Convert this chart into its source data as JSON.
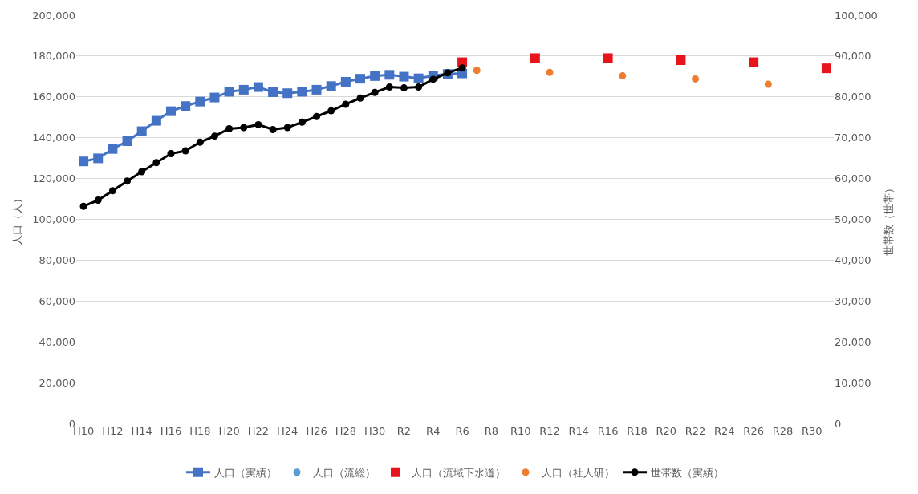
{
  "chart_data": {
    "type": "line",
    "categories": [
      "H10",
      null,
      "H12",
      null,
      "H14",
      null,
      "H16",
      null,
      "H18",
      null,
      "H20",
      null,
      "H22",
      null,
      "H24",
      null,
      "H26",
      null,
      "H28",
      null,
      "H30",
      null,
      "R2",
      null,
      "R4",
      null,
      "R6",
      null,
      "R8",
      null,
      "R10",
      null,
      "R12",
      null,
      "R14",
      null,
      "R16",
      null,
      "R18",
      null,
      "R20",
      null,
      "R22",
      null,
      "R24",
      null,
      "R26",
      null,
      "R28",
      null,
      "R30",
      null
    ],
    "ylabel": "人口（人）",
    "y2label": "世帯数（世帯）",
    "ylim": [
      0,
      200000
    ],
    "yticks": [
      {
        "value": 0,
        "label": "0"
      },
      {
        "value": 20000,
        "label": "20,000"
      },
      {
        "value": 40000,
        "label": "40,000"
      },
      {
        "value": 60000,
        "label": "60,000"
      },
      {
        "value": 80000,
        "label": "80,000"
      },
      {
        "value": 100000,
        "label": "100,000"
      },
      {
        "value": 120000,
        "label": "120,000"
      },
      {
        "value": 140000,
        "label": "140,000"
      },
      {
        "value": 160000,
        "label": "160,000"
      },
      {
        "value": 180000,
        "label": "180,000"
      },
      {
        "value": 200000,
        "label": "200,000"
      }
    ],
    "y2lim": [
      0,
      100000
    ],
    "y2ticks": [
      {
        "value": 0,
        "label": "0"
      },
      {
        "value": 10000,
        "label": "10,000"
      },
      {
        "value": 20000,
        "label": "20,000"
      },
      {
        "value": 30000,
        "label": "30,000"
      },
      {
        "value": 40000,
        "label": "40,000"
      },
      {
        "value": 50000,
        "label": "50,000"
      },
      {
        "value": 60000,
        "label": "60,000"
      },
      {
        "value": 70000,
        "label": "70,000"
      },
      {
        "value": 80000,
        "label": "80,000"
      },
      {
        "value": 90000,
        "label": "90,000"
      },
      {
        "value": 100000,
        "label": "100,000"
      }
    ],
    "grid": "y",
    "legend": "bottom",
    "series": [
      {
        "name": "人口（実績）",
        "marker": "square",
        "color": "#4472c4",
        "values": [
          128400,
          129900,
          134500,
          138300,
          143200,
          148300,
          153000,
          155500,
          157700,
          159700,
          162500,
          163500,
          164800,
          162300,
          161800,
          162500,
          163500,
          165300,
          167400,
          168900,
          170200,
          170800,
          169900,
          169100,
          170400,
          171200,
          171500,
          null,
          null,
          null,
          null,
          null,
          null,
          null,
          null,
          null,
          null,
          null,
          null,
          null,
          null,
          null,
          null,
          null,
          null,
          null,
          null,
          null,
          null,
          null,
          null,
          null
        ]
      },
      {
        "name": "人口（流総）",
        "type": "scatter",
        "marker": "circle",
        "color": "#5b9bd5",
        "values": [
          null,
          null,
          null,
          null,
          null,
          null,
          null,
          null,
          null,
          null,
          null,
          null,
          null,
          null,
          null,
          null,
          null,
          null,
          null,
          null,
          null,
          null,
          null,
          null,
          null,
          null,
          null,
          null,
          null,
          null,
          null,
          null,
          null,
          null,
          null,
          null,
          null,
          null,
          null,
          null,
          null,
          null,
          null,
          null,
          null,
          null,
          null,
          null,
          null,
          null,
          null,
          null
        ]
      },
      {
        "name": "人口（流域下水道）",
        "type": "scatter",
        "marker": "square",
        "color": "#e8141c",
        "values": [
          null,
          null,
          null,
          null,
          null,
          null,
          null,
          null,
          null,
          null,
          null,
          null,
          null,
          null,
          null,
          null,
          null,
          null,
          null,
          null,
          null,
          null,
          null,
          null,
          null,
          null,
          177000,
          null,
          null,
          null,
          null,
          179000,
          null,
          null,
          null,
          null,
          179000,
          null,
          null,
          null,
          null,
          178000,
          null,
          null,
          null,
          null,
          177000,
          null,
          null,
          null,
          null,
          174000
        ]
      },
      {
        "name": "人口（社人研）",
        "type": "scatter",
        "marker": "circle",
        "color": "#ed7d31",
        "values": [
          null,
          null,
          null,
          null,
          null,
          null,
          null,
          null,
          null,
          null,
          null,
          null,
          null,
          null,
          null,
          null,
          null,
          null,
          null,
          null,
          null,
          null,
          null,
          null,
          null,
          null,
          null,
          173000,
          null,
          null,
          null,
          null,
          172000,
          null,
          null,
          null,
          null,
          170300,
          null,
          null,
          null,
          null,
          168800,
          null,
          null,
          null,
          null,
          166200,
          null,
          null,
          null,
          null
        ]
      },
      {
        "name": "世帯数（実績）",
        "marker": "circle",
        "color": "#000000",
        "axis": "y2",
        "values": [
          53200,
          54700,
          57000,
          59400,
          61700,
          63900,
          66100,
          66800,
          68900,
          70400,
          72200,
          72500,
          73200,
          72000,
          72500,
          73800,
          75200,
          76600,
          78200,
          79700,
          81100,
          82400,
          82200,
          82400,
          84300,
          85900,
          87100,
          null,
          null,
          null,
          null,
          null,
          null,
          null,
          null,
          null,
          null,
          null,
          null,
          null,
          null,
          null,
          null,
          null,
          null,
          null,
          null,
          null,
          null,
          null,
          null,
          null
        ]
      }
    ]
  }
}
